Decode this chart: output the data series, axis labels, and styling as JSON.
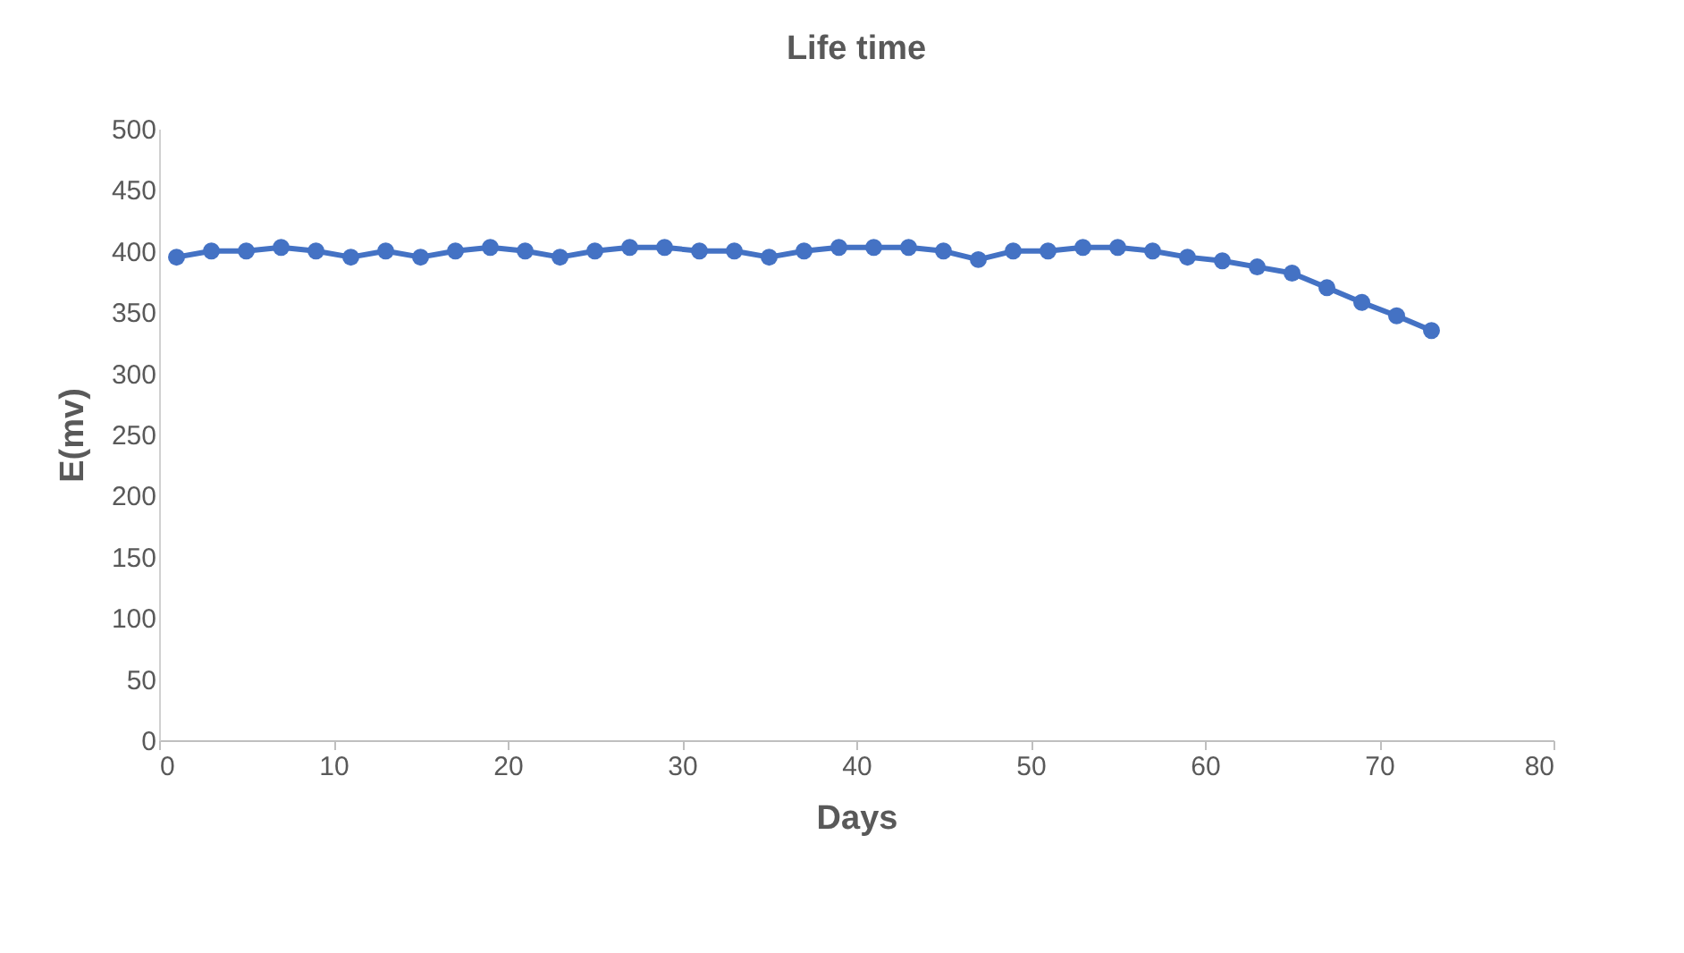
{
  "chart_data": {
    "type": "line",
    "title": "Life time",
    "xlabel": "Days",
    "ylabel": "E(mv)",
    "x": [
      1,
      3,
      5,
      7,
      9,
      11,
      13,
      15,
      17,
      19,
      21,
      23,
      25,
      27,
      29,
      31,
      33,
      35,
      37,
      39,
      41,
      43,
      45,
      47,
      49,
      51,
      53,
      55,
      57,
      59,
      61,
      63,
      65,
      67,
      69,
      71,
      73
    ],
    "series": [
      {
        "color": "#4472c4",
        "values": [
          395,
          400,
          400,
          403,
          400,
          395,
          400,
          395,
          400,
          403,
          400,
          395,
          400,
          403,
          403,
          400,
          400,
          395,
          400,
          403,
          403,
          403,
          400,
          393,
          400,
          400,
          403,
          403,
          400,
          395,
          392,
          387,
          382,
          370,
          358,
          347,
          335
        ]
      }
    ],
    "xlim": [
      0,
      80
    ],
    "xticks": [
      0,
      10,
      20,
      30,
      40,
      50,
      60,
      70,
      80
    ],
    "ylim": [
      0,
      500
    ],
    "yticks": [
      0,
      50,
      100,
      150,
      200,
      250,
      300,
      350,
      400,
      450,
      500
    ],
    "grid": false,
    "marker": "circle",
    "line_style": "solid"
  }
}
